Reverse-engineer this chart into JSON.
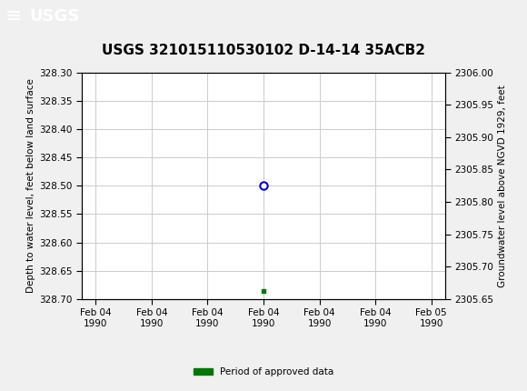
{
  "title": "USGS 321015110530102 D-14-14 35ACB2",
  "ylabel_left": "Depth to water level, feet below land surface",
  "ylabel_right": "Groundwater level above NGVD 1929, feet",
  "ylim_left_top": 328.3,
  "ylim_left_bottom": 328.7,
  "ylim_right_top": 2306.0,
  "ylim_right_bottom": 2305.65,
  "yticks_left": [
    328.3,
    328.35,
    328.4,
    328.45,
    328.5,
    328.55,
    328.6,
    328.65,
    328.7
  ],
  "yticks_right": [
    2306.0,
    2305.95,
    2305.9,
    2305.85,
    2305.8,
    2305.75,
    2305.7,
    2305.65
  ],
  "data_point_x": 6,
  "data_point_y": 328.5,
  "data_point_color": "#0000cc",
  "bar_x": 6,
  "bar_y": 328.685,
  "bar_color": "#007700",
  "legend_label": "Period of approved data",
  "legend_color": "#007700",
  "header_bg_color": "#006633",
  "title_fontsize": 11,
  "tick_fontsize": 7.5,
  "axis_label_fontsize": 7.5,
  "grid_color": "#cccccc",
  "bg_color": "#f0f0f0",
  "plot_bg_color": "#ffffff",
  "xtick_labels": [
    "Feb 04\n1990",
    "Feb 04\n1990",
    "Feb 04\n1990",
    "Feb 04\n1990",
    "Feb 04\n1990",
    "Feb 04\n1990",
    "Feb 05\n1990"
  ],
  "xtick_positions": [
    0,
    2,
    4,
    6,
    8,
    10,
    12
  ],
  "xlim": [
    -0.5,
    12.5
  ]
}
